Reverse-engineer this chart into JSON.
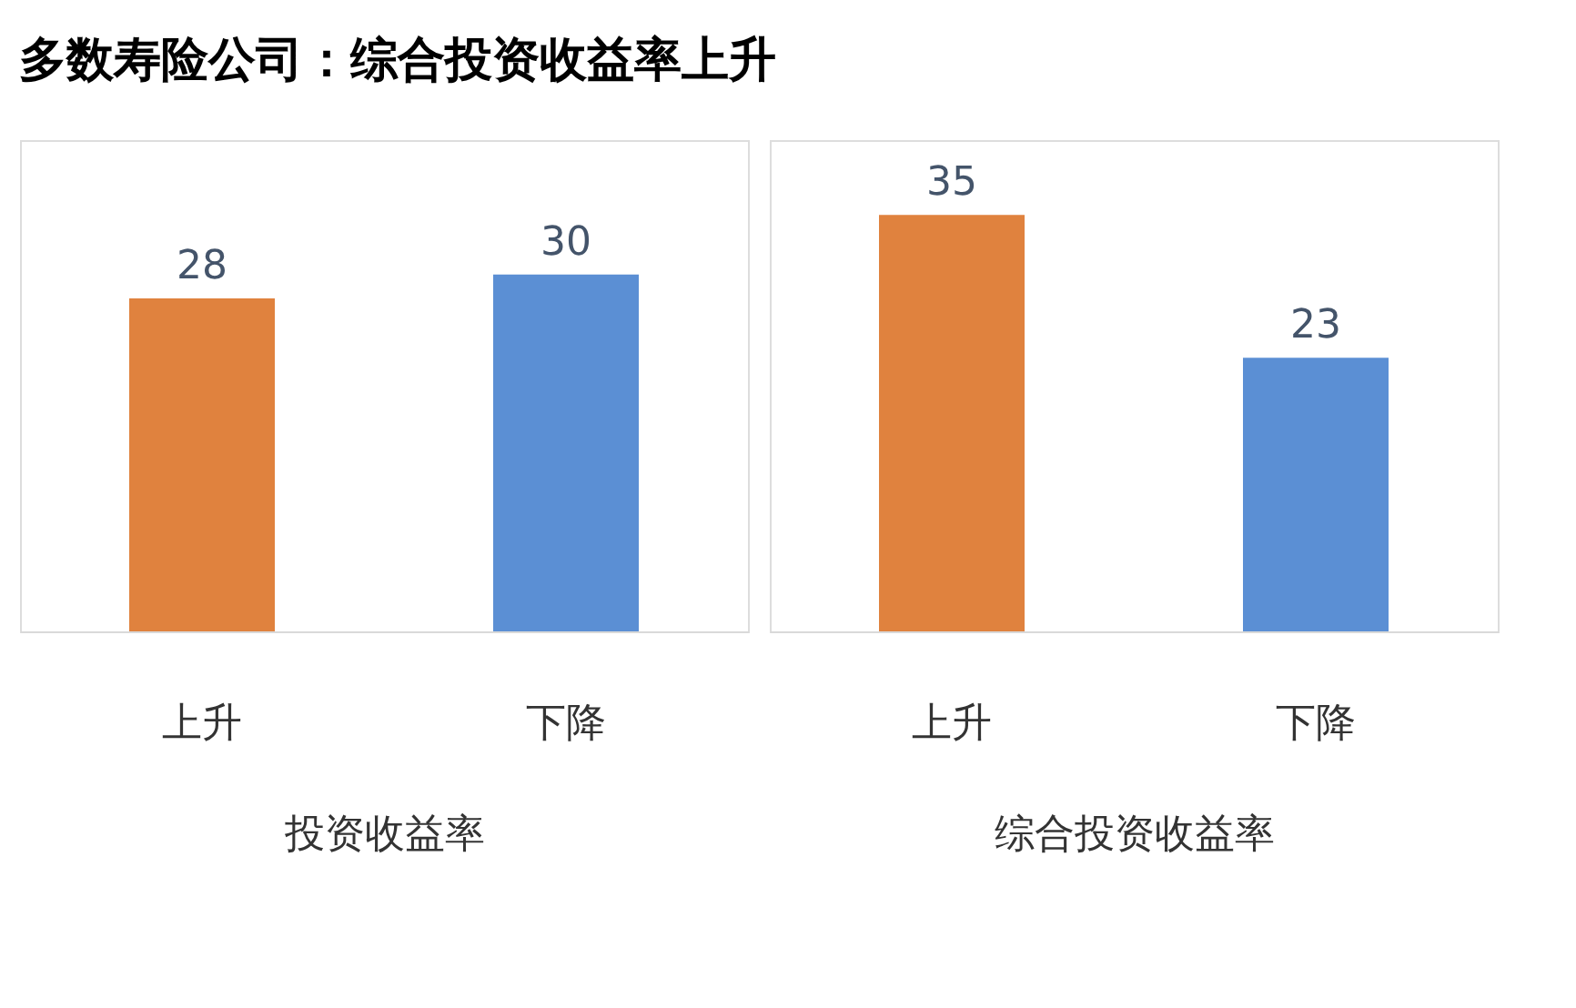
{
  "chart_data": [
    {
      "type": "bar",
      "title": "多数寿险公司：综合投资收益率上升",
      "categories": [
        "上升",
        "下降"
      ],
      "values": [
        28,
        30
      ],
      "colors": [
        "#e0823e",
        "#5b8fd4"
      ],
      "xlabel": "投资收益率",
      "data_labels": true
    },
    {
      "type": "bar",
      "categories": [
        "上升",
        "下降"
      ],
      "values": [
        35,
        23
      ],
      "colors": [
        "#e0823e",
        "#5b8fd4"
      ],
      "xlabel": "综合投资收益率",
      "data_labels": true
    }
  ]
}
